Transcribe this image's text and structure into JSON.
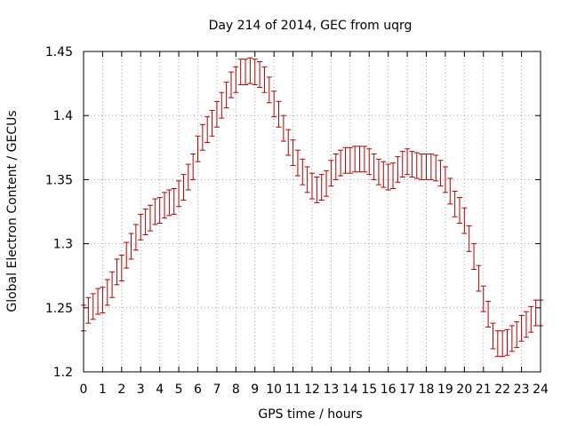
{
  "chart_data": {
    "type": "scatter",
    "title": "Day 214 of 2014, GEC from uqrg",
    "xlabel": "GPS time / hours",
    "ylabel": "Global Electron Content / GECUs",
    "xlim": [
      0,
      24
    ],
    "ylim": [
      1.2,
      1.45
    ],
    "grid": true,
    "x_ticks": [
      0,
      1,
      2,
      3,
      4,
      5,
      6,
      7,
      8,
      9,
      10,
      11,
      12,
      13,
      14,
      15,
      16,
      17,
      18,
      19,
      20,
      21,
      22,
      23,
      24
    ],
    "y_ticks": [
      1.2,
      1.25,
      1.3,
      1.35,
      1.4,
      1.45
    ],
    "y_tick_labels": [
      "1.2",
      "1.25",
      "1.3",
      "1.35",
      "1.4",
      "1.45"
    ],
    "error": 0.01,
    "colors": {
      "series": "#b40000",
      "grid": "#a0a0a0"
    },
    "points": [
      [
        0.0,
        1.242
      ],
      [
        0.25,
        1.248
      ],
      [
        0.5,
        1.251
      ],
      [
        0.75,
        1.255
      ],
      [
        1.0,
        1.256
      ],
      [
        1.25,
        1.262
      ],
      [
        1.5,
        1.268
      ],
      [
        1.75,
        1.278
      ],
      [
        2.0,
        1.281
      ],
      [
        2.25,
        1.291
      ],
      [
        2.5,
        1.298
      ],
      [
        2.75,
        1.305
      ],
      [
        3.0,
        1.313
      ],
      [
        3.25,
        1.317
      ],
      [
        3.5,
        1.32
      ],
      [
        3.75,
        1.325
      ],
      [
        4.0,
        1.326
      ],
      [
        4.25,
        1.33
      ],
      [
        4.5,
        1.332
      ],
      [
        4.75,
        1.333
      ],
      [
        5.0,
        1.339
      ],
      [
        5.25,
        1.344
      ],
      [
        5.5,
        1.352
      ],
      [
        5.75,
        1.36
      ],
      [
        6.0,
        1.374
      ],
      [
        6.25,
        1.383
      ],
      [
        6.5,
        1.389
      ],
      [
        6.75,
        1.394
      ],
      [
        7.0,
        1.401
      ],
      [
        7.25,
        1.408
      ],
      [
        7.5,
        1.416
      ],
      [
        7.75,
        1.424
      ],
      [
        8.0,
        1.428
      ],
      [
        8.25,
        1.434
      ],
      [
        8.5,
        1.434
      ],
      [
        8.75,
        1.435
      ],
      [
        9.0,
        1.434
      ],
      [
        9.25,
        1.432
      ],
      [
        9.5,
        1.428
      ],
      [
        9.75,
        1.42
      ],
      [
        10.0,
        1.409
      ],
      [
        10.25,
        1.401
      ],
      [
        10.5,
        1.39
      ],
      [
        10.75,
        1.379
      ],
      [
        11.0,
        1.371
      ],
      [
        11.25,
        1.363
      ],
      [
        11.5,
        1.356
      ],
      [
        11.75,
        1.35
      ],
      [
        12.0,
        1.345
      ],
      [
        12.25,
        1.342
      ],
      [
        12.5,
        1.344
      ],
      [
        12.75,
        1.347
      ],
      [
        13.0,
        1.355
      ],
      [
        13.25,
        1.36
      ],
      [
        13.5,
        1.363
      ],
      [
        13.75,
        1.365
      ],
      [
        14.0,
        1.365
      ],
      [
        14.25,
        1.366
      ],
      [
        14.5,
        1.366
      ],
      [
        14.75,
        1.366
      ],
      [
        15.0,
        1.364
      ],
      [
        15.25,
        1.36
      ],
      [
        15.5,
        1.356
      ],
      [
        15.75,
        1.354
      ],
      [
        16.0,
        1.352
      ],
      [
        16.25,
        1.353
      ],
      [
        16.5,
        1.358
      ],
      [
        16.75,
        1.362
      ],
      [
        17.0,
        1.364
      ],
      [
        17.25,
        1.362
      ],
      [
        17.5,
        1.361
      ],
      [
        17.75,
        1.36
      ],
      [
        18.0,
        1.36
      ],
      [
        18.25,
        1.36
      ],
      [
        18.5,
        1.359
      ],
      [
        18.75,
        1.355
      ],
      [
        19.0,
        1.35
      ],
      [
        19.25,
        1.341
      ],
      [
        19.5,
        1.331
      ],
      [
        19.75,
        1.326
      ],
      [
        20.0,
        1.318
      ],
      [
        20.25,
        1.304
      ],
      [
        20.5,
        1.29
      ],
      [
        20.75,
        1.273
      ],
      [
        21.0,
        1.257
      ],
      [
        21.25,
        1.245
      ],
      [
        21.5,
        1.228
      ],
      [
        21.75,
        1.222
      ],
      [
        22.0,
        1.222
      ],
      [
        22.25,
        1.223
      ],
      [
        22.5,
        1.226
      ],
      [
        22.75,
        1.229
      ],
      [
        23.0,
        1.234
      ],
      [
        23.25,
        1.237
      ],
      [
        23.5,
        1.241
      ],
      [
        23.75,
        1.246
      ],
      [
        24.0,
        1.246
      ]
    ]
  }
}
